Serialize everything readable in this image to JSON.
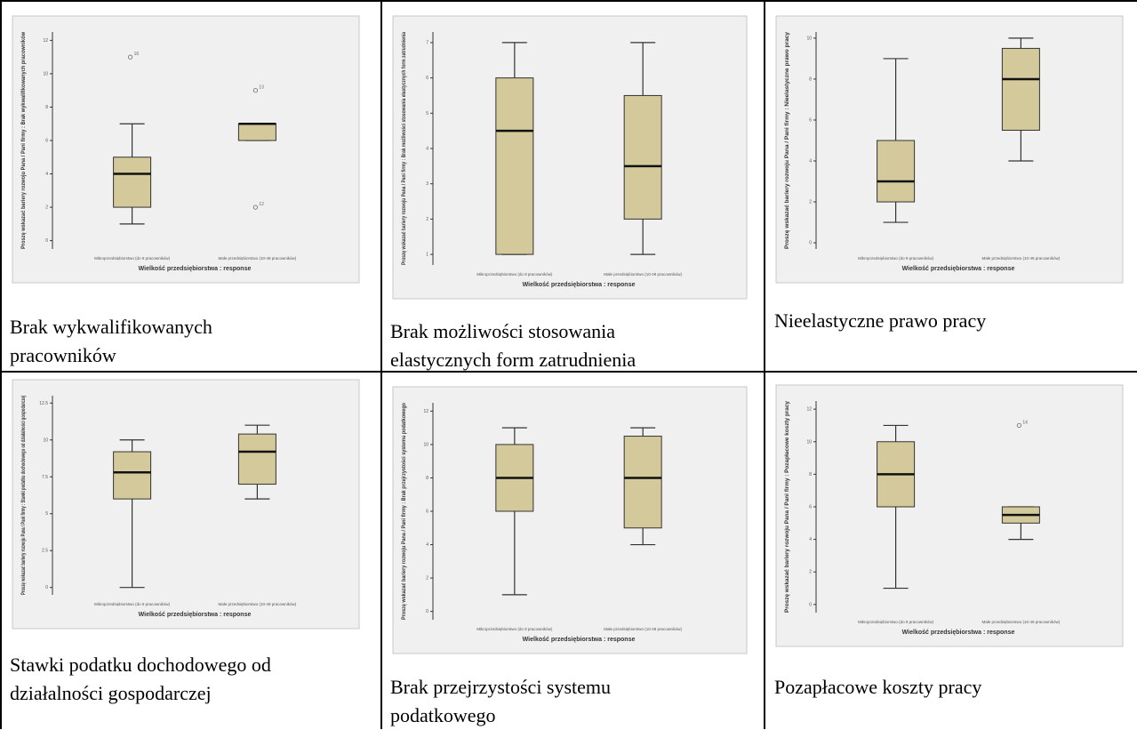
{
  "chart_data": [
    {
      "type": "boxplot",
      "caption": "Brak wykwalifikowanych pracowników",
      "ylabel": "Proszę wskazać bariery rozwoju Pana / Pani firmy : Brak wykwalifikowanych pracowników",
      "xlabel": "Wielkość przedsiębiorstwa : response",
      "categories": [
        "Mikroprzedsiębiorstwo (do 9 pracowników)",
        "Małe przedsiębiorstwo (10-49 pracowników)"
      ],
      "yticks": [
        0,
        2,
        4,
        6,
        8,
        10,
        12
      ],
      "ylim": [
        -0.5,
        12.5
      ],
      "boxes": [
        {
          "whisker_low": 1,
          "q1": 2,
          "median": 4,
          "q3": 5,
          "whisker_high": 7,
          "outliers": [
            {
              "value": 11,
              "label": "16"
            }
          ]
        },
        {
          "whisker_low": 6,
          "q1": 6,
          "median": 7,
          "q3": 7,
          "whisker_high": 7,
          "outliers": [
            {
              "value": 9,
              "label": "13"
            },
            {
              "value": 2,
              "label": "12"
            }
          ]
        }
      ]
    },
    {
      "type": "boxplot",
      "caption": "Brak możliwości stosowania elastycznych form zatrudnienia",
      "ylabel": "Proszę wskazać bariery rozwoju Pana / Pani firmy : Brak możliwości stosowania elastycznych form zatrudnienia",
      "xlabel": "Wielkość przedsiębiorstwa : response",
      "categories": [
        "Mikroprzedsiębiorstwo (do 9 pracowników)",
        "Małe przedsiębiorstwo (10-49 pracowników)"
      ],
      "yticks": [
        1,
        2,
        3,
        4,
        5,
        6,
        7
      ],
      "ylim": [
        0.7,
        7.3
      ],
      "boxes": [
        {
          "whisker_low": 1,
          "q1": 1,
          "median": 4.5,
          "q3": 6,
          "whisker_high": 7,
          "outliers": []
        },
        {
          "whisker_low": 1,
          "q1": 2,
          "median": 3.5,
          "q3": 5.5,
          "whisker_high": 7,
          "outliers": []
        }
      ]
    },
    {
      "type": "boxplot",
      "caption": "Nieelastyczne prawo pracy",
      "ylabel": "Proszę wskazać bariery rozwoju Pana / Pani firmy : Nieelastyczne prawo pracy",
      "xlabel": "Wielkość przedsiębiorstwa : response",
      "categories": [
        "Mikroprzedsiębiorstwo (do 9 pracowników)",
        "Małe przedsiębiorstwo (10-49 pracowników)"
      ],
      "yticks": [
        0,
        2,
        4,
        6,
        8,
        10
      ],
      "ylim": [
        -0.3,
        10.3
      ],
      "boxes": [
        {
          "whisker_low": 1,
          "q1": 2,
          "median": 3,
          "q3": 5,
          "whisker_high": 9,
          "outliers": []
        },
        {
          "whisker_low": 4,
          "q1": 5.5,
          "median": 8,
          "q3": 9.5,
          "whisker_high": 10,
          "outliers": []
        }
      ]
    },
    {
      "type": "boxplot",
      "caption": "Stawki podatku dochodowego od działalności gospodarczej",
      "ylabel": "Proszę wskazać bariery rozwoju Pana / Pani firmy : Stawki podatku dochodowego od działalności gospodarczej",
      "xlabel": "Wielkość przedsiębiorstwa : response",
      "categories": [
        "Mikroprzedsiębiorstwo (do 9 pracowników)",
        "Małe przedsiębiorstwo (10-49 pracowników)"
      ],
      "yticks": [
        0,
        2.5,
        5,
        7.5,
        10,
        12.5
      ],
      "ylim": [
        -0.5,
        13
      ],
      "boxes": [
        {
          "whisker_low": 0,
          "q1": 6,
          "median": 7.8,
          "q3": 9.2,
          "whisker_high": 10,
          "outliers": []
        },
        {
          "whisker_low": 6,
          "q1": 7,
          "median": 9.2,
          "q3": 10.4,
          "whisker_high": 11,
          "outliers": []
        }
      ]
    },
    {
      "type": "boxplot",
      "caption": "Brak przejrzystości systemu podatkowego",
      "ylabel": "Proszę wskazać bariery rozwoju Pana / Pani firmy : Brak przejrzystości systemu podatkowego",
      "xlabel": "Wielkość przedsiębiorstwa : response",
      "categories": [
        "Mikroprzedsiębiorstwo (do 9 pracowników)",
        "Małe przedsiębiorstwo (10-49 pracowników)"
      ],
      "yticks": [
        0,
        2,
        4,
        6,
        8,
        10,
        12
      ],
      "ylim": [
        -0.5,
        12.5
      ],
      "boxes": [
        {
          "whisker_low": 1,
          "q1": 6,
          "median": 8,
          "q3": 10,
          "whisker_high": 11,
          "outliers": []
        },
        {
          "whisker_low": 4,
          "q1": 5,
          "median": 8,
          "q3": 10.5,
          "whisker_high": 11,
          "outliers": []
        }
      ]
    },
    {
      "type": "boxplot",
      "caption": "Pozapłacowe koszty pracy",
      "ylabel": "Proszę wskazać bariery rozwoju Pana / Pani firmy : Pozapłacowe koszty pracy",
      "xlabel": "Wielkość przedsiębiorstwa : response",
      "categories": [
        "Mikroprzedsiębiorstwo (do 9 pracowników)",
        "Małe przedsiębiorstwo (10-49 pracowników)"
      ],
      "yticks": [
        0,
        2,
        4,
        6,
        8,
        10,
        12
      ],
      "ylim": [
        -0.5,
        12.5
      ],
      "boxes": [
        {
          "whisker_low": 1,
          "q1": 6,
          "median": 8,
          "q3": 10,
          "whisker_high": 11,
          "outliers": []
        },
        {
          "whisker_low": 4,
          "q1": 5,
          "median": 5.5,
          "q3": 6,
          "whisker_high": 6,
          "outliers": [
            {
              "value": 11,
              "label": "14"
            }
          ]
        }
      ]
    }
  ]
}
